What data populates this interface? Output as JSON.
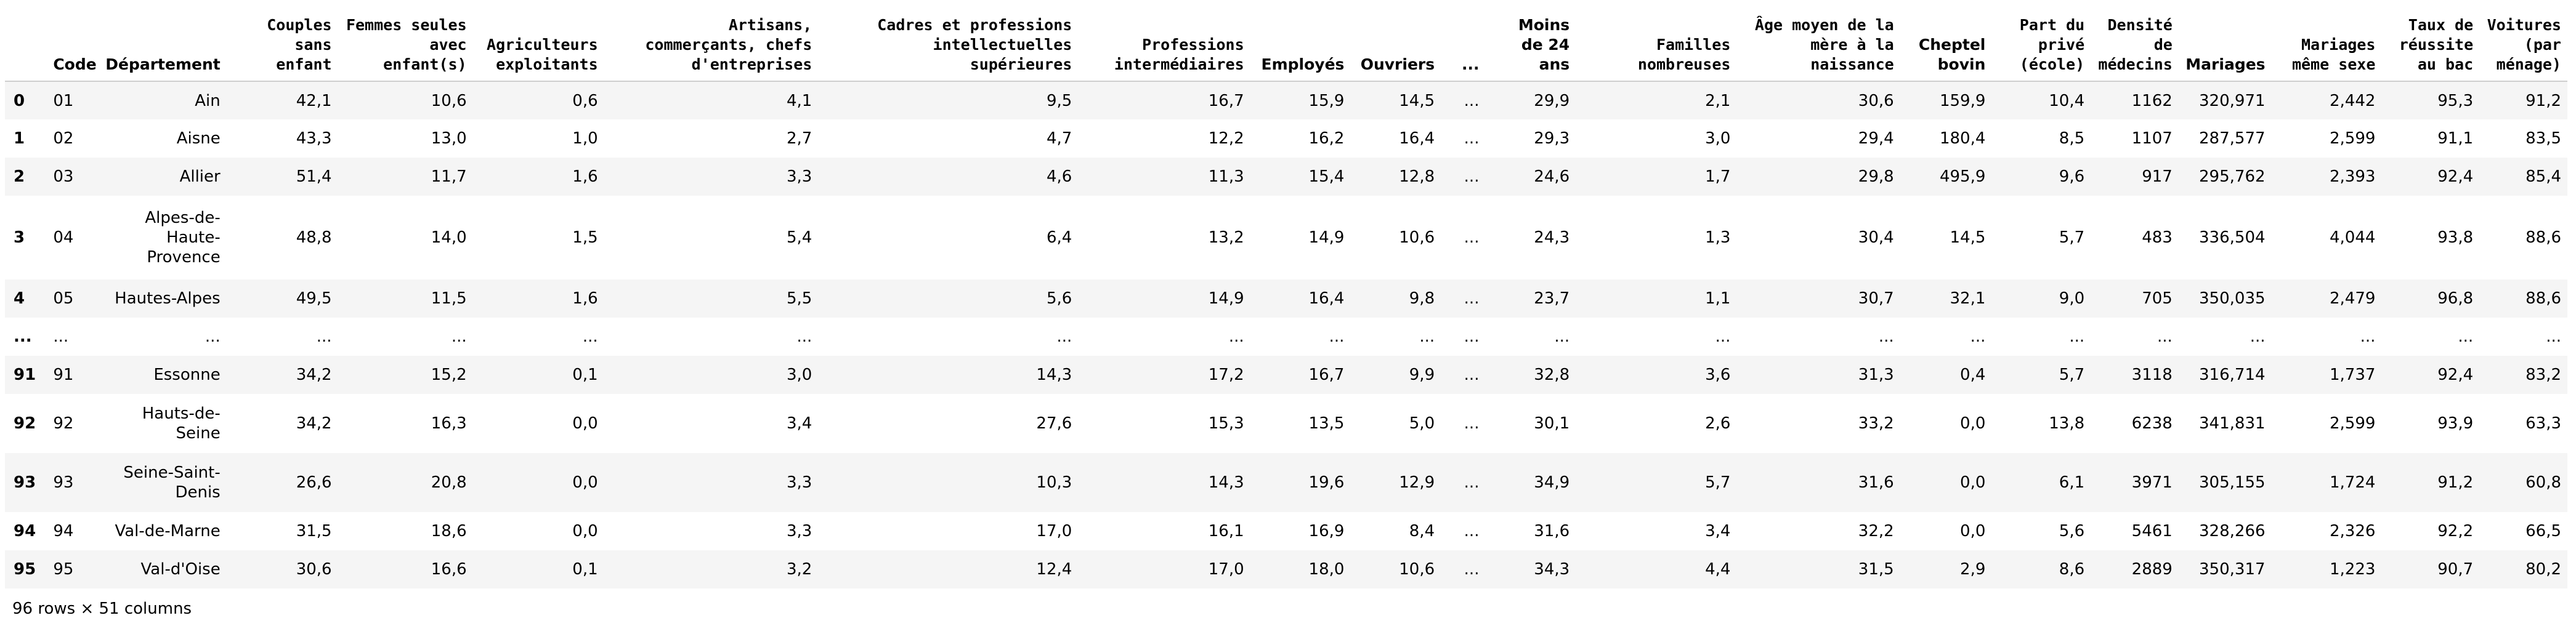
{
  "table": {
    "columns": [
      "Code",
      "Département",
      "Couples sans enfant",
      "Femmes seules avec enfant(s)",
      "Agriculteurs exploitants",
      "Artisans, commerçants, chefs d'entreprises",
      "Cadres et professions intellectuelles supérieures",
      "Professions intermédiaires",
      "Employés",
      "Ouvriers",
      "...",
      "Moins de 24 ans",
      "Familles nombreuses",
      "Âge moyen de la mère à la naissance",
      "Cheptel bovin",
      "Part du privé (école)",
      "Densité de médecins",
      "Mariages",
      "Mariages même sexe",
      "Taux de réussite au bac",
      "Voitures (par ménage)"
    ],
    "rows": [
      {
        "index": "0",
        "cells": [
          "01",
          "Ain",
          "42,1",
          "10,6",
          "0,6",
          "4,1",
          "9,5",
          "16,7",
          "15,9",
          "14,5",
          "...",
          "29,9",
          "2,1",
          "30,6",
          "159,9",
          "10,4",
          "1162",
          "320,971",
          "2,442",
          "95,3",
          "91,2"
        ]
      },
      {
        "index": "1",
        "cells": [
          "02",
          "Aisne",
          "43,3",
          "13,0",
          "1,0",
          "2,7",
          "4,7",
          "12,2",
          "16,2",
          "16,4",
          "...",
          "29,3",
          "3,0",
          "29,4",
          "180,4",
          "8,5",
          "1107",
          "287,577",
          "2,599",
          "91,1",
          "83,5"
        ]
      },
      {
        "index": "2",
        "cells": [
          "03",
          "Allier",
          "51,4",
          "11,7",
          "1,6",
          "3,3",
          "4,6",
          "11,3",
          "15,4",
          "12,8",
          "...",
          "24,6",
          "1,7",
          "29,8",
          "495,9",
          "9,6",
          "917",
          "295,762",
          "2,393",
          "92,4",
          "85,4"
        ]
      },
      {
        "index": "3",
        "cells": [
          "04",
          "Alpes-de-Haute-Provence",
          "48,8",
          "14,0",
          "1,5",
          "5,4",
          "6,4",
          "13,2",
          "14,9",
          "10,6",
          "...",
          "24,3",
          "1,3",
          "30,4",
          "14,5",
          "5,7",
          "483",
          "336,504",
          "4,044",
          "93,8",
          "88,6"
        ]
      },
      {
        "index": "4",
        "cells": [
          "05",
          "Hautes-Alpes",
          "49,5",
          "11,5",
          "1,6",
          "5,5",
          "5,6",
          "14,9",
          "16,4",
          "9,8",
          "...",
          "23,7",
          "1,1",
          "30,7",
          "32,1",
          "9,0",
          "705",
          "350,035",
          "2,479",
          "96,8",
          "88,6"
        ]
      },
      {
        "index": "...",
        "cells": [
          "...",
          "...",
          "...",
          "...",
          "...",
          "...",
          "...",
          "...",
          "...",
          "...",
          "...",
          "...",
          "...",
          "...",
          "...",
          "...",
          "...",
          "...",
          "...",
          "...",
          "..."
        ]
      },
      {
        "index": "91",
        "cells": [
          "91",
          "Essonne",
          "34,2",
          "15,2",
          "0,1",
          "3,0",
          "14,3",
          "17,2",
          "16,7",
          "9,9",
          "...",
          "32,8",
          "3,6",
          "31,3",
          "0,4",
          "5,7",
          "3118",
          "316,714",
          "1,737",
          "92,4",
          "83,2"
        ]
      },
      {
        "index": "92",
        "cells": [
          "92",
          "Hauts-de-Seine",
          "34,2",
          "16,3",
          "0,0",
          "3,4",
          "27,6",
          "15,3",
          "13,5",
          "5,0",
          "...",
          "30,1",
          "2,6",
          "33,2",
          "0,0",
          "13,8",
          "6238",
          "341,831",
          "2,599",
          "93,9",
          "63,3"
        ]
      },
      {
        "index": "93",
        "cells": [
          "93",
          "Seine-Saint-Denis",
          "26,6",
          "20,8",
          "0,0",
          "3,3",
          "10,3",
          "14,3",
          "19,6",
          "12,9",
          "...",
          "34,9",
          "5,7",
          "31,6",
          "0,0",
          "6,1",
          "3971",
          "305,155",
          "1,724",
          "91,2",
          "60,8"
        ]
      },
      {
        "index": "94",
        "cells": [
          "94",
          "Val-de-Marne",
          "31,5",
          "18,6",
          "0,0",
          "3,3",
          "17,0",
          "16,1",
          "16,9",
          "8,4",
          "...",
          "31,6",
          "3,4",
          "32,2",
          "0,0",
          "5,6",
          "5461",
          "328,266",
          "2,326",
          "92,2",
          "66,5"
        ]
      },
      {
        "index": "95",
        "cells": [
          "95",
          "Val-d'Oise",
          "30,6",
          "16,6",
          "0,1",
          "3,2",
          "12,4",
          "17,0",
          "18,0",
          "10,6",
          "...",
          "34,3",
          "4,4",
          "31,5",
          "2,9",
          "8,6",
          "2889",
          "350,317",
          "1,223",
          "90,7",
          "80,2"
        ]
      }
    ],
    "shape_caption": "96 rows × 51 columns"
  }
}
